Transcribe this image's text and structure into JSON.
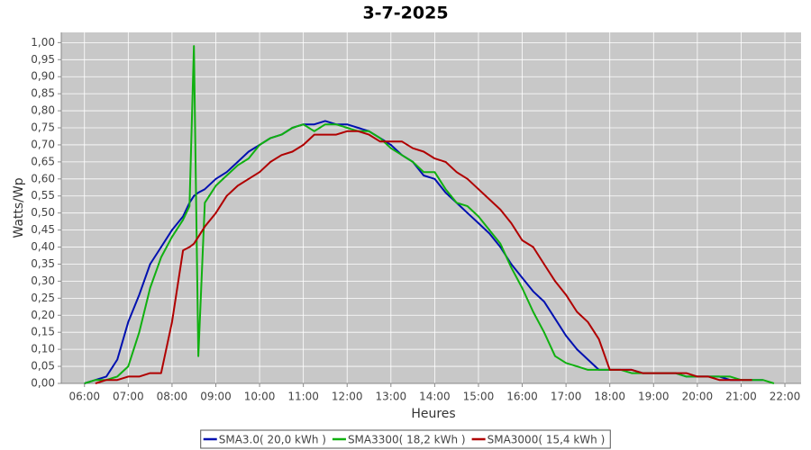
{
  "chart_data": {
    "type": "line",
    "title": "3-7-2025",
    "x_label": "Heures",
    "y_label": "Watts/Wp",
    "grid": true,
    "legend": "bottom",
    "x": [
      6,
      6.25,
      6.5,
      6.75,
      7,
      7.25,
      7.5,
      7.75,
      8,
      8.25,
      8.4,
      8.5,
      8.6,
      8.75,
      9,
      9.25,
      9.5,
      9.75,
      10,
      10.25,
      10.5,
      10.75,
      11,
      11.25,
      11.5,
      11.75,
      12,
      12.25,
      12.5,
      12.75,
      13,
      13.25,
      13.5,
      13.75,
      14,
      14.25,
      14.5,
      14.75,
      15,
      15.25,
      15.5,
      15.75,
      16,
      16.25,
      16.5,
      16.75,
      17,
      17.25,
      17.5,
      17.75,
      18,
      18.25,
      18.5,
      18.75,
      19,
      19.25,
      19.5,
      19.75,
      20,
      20.25,
      20.5,
      20.75,
      21,
      21.25,
      21.5,
      21.75
    ],
    "series": [
      {
        "name": "SMA3.0( 20,0 kWh )",
        "color": "#0010b0",
        "values": [
          0.0,
          0.01,
          0.02,
          0.07,
          0.18,
          0.26,
          0.35,
          0.4,
          0.45,
          0.49,
          0.53,
          0.55,
          0.56,
          0.57,
          0.6,
          0.62,
          0.65,
          0.68,
          0.7,
          0.72,
          0.73,
          0.75,
          0.76,
          0.76,
          0.77,
          0.76,
          0.76,
          0.75,
          0.74,
          0.72,
          0.7,
          0.67,
          0.65,
          0.61,
          0.6,
          0.56,
          0.53,
          0.5,
          0.47,
          0.44,
          0.4,
          0.35,
          0.31,
          0.27,
          0.24,
          0.19,
          0.14,
          0.1,
          0.07,
          0.04,
          0.04,
          0.04,
          0.04,
          0.03,
          0.03,
          0.03,
          0.03,
          0.02,
          0.02,
          0.02,
          0.02,
          0.01,
          0.01,
          0.01,
          0.01,
          null
        ]
      },
      {
        "name": "SMA3300( 18,2 kWh )",
        "color": "#10b010",
        "values": [
          0.0,
          0.01,
          0.01,
          0.02,
          0.05,
          0.15,
          0.28,
          0.37,
          0.43,
          0.48,
          0.52,
          0.99,
          0.08,
          0.53,
          0.58,
          0.61,
          0.64,
          0.66,
          0.7,
          0.72,
          0.73,
          0.75,
          0.76,
          0.74,
          0.76,
          0.76,
          0.75,
          0.74,
          0.74,
          0.72,
          0.69,
          0.67,
          0.65,
          0.62,
          0.62,
          0.57,
          0.53,
          0.52,
          0.49,
          0.45,
          0.41,
          0.34,
          0.28,
          0.21,
          0.15,
          0.08,
          0.06,
          0.05,
          0.04,
          0.04,
          0.04,
          0.04,
          0.03,
          0.03,
          0.03,
          0.03,
          0.03,
          0.02,
          0.02,
          0.02,
          0.02,
          0.02,
          0.01,
          0.01,
          0.01,
          0.0
        ]
      },
      {
        "name": "SMA3000( 15,4 kWh )",
        "color": "#b00000",
        "values": [
          null,
          0.0,
          0.01,
          0.01,
          0.02,
          0.02,
          0.03,
          0.03,
          0.18,
          0.39,
          0.4,
          0.41,
          0.43,
          0.46,
          0.5,
          0.55,
          0.58,
          0.6,
          0.62,
          0.65,
          0.67,
          0.68,
          0.7,
          0.73,
          0.73,
          0.73,
          0.74,
          0.74,
          0.73,
          0.71,
          0.71,
          0.71,
          0.69,
          0.68,
          0.66,
          0.65,
          0.62,
          0.6,
          0.57,
          0.54,
          0.51,
          0.47,
          0.42,
          0.4,
          0.35,
          0.3,
          0.26,
          0.21,
          0.18,
          0.13,
          0.04,
          0.04,
          0.04,
          0.03,
          0.03,
          0.03,
          0.03,
          0.03,
          0.02,
          0.02,
          0.01,
          0.01,
          0.01,
          0.01,
          null,
          null
        ]
      }
    ],
    "xlim": [
      5.47,
      22.37
    ],
    "xticks": [
      {
        "value": 6,
        "label": "06:00"
      },
      {
        "value": 7,
        "label": "07:00"
      },
      {
        "value": 8,
        "label": "08:00"
      },
      {
        "value": 9,
        "label": "09:00"
      },
      {
        "value": 10,
        "label": "10:00"
      },
      {
        "value": 11,
        "label": "11:00"
      },
      {
        "value": 12,
        "label": "12:00"
      },
      {
        "value": 13,
        "label": "13:00"
      },
      {
        "value": 14,
        "label": "14:00"
      },
      {
        "value": 15,
        "label": "15:00"
      },
      {
        "value": 16,
        "label": "16:00"
      },
      {
        "value": 17,
        "label": "17:00"
      },
      {
        "value": 18,
        "label": "18:00"
      },
      {
        "value": 19,
        "label": "19:00"
      },
      {
        "value": 20,
        "label": "20:00"
      },
      {
        "value": 21,
        "label": "21:00"
      },
      {
        "value": 22,
        "label": "22:00"
      }
    ],
    "ylim": [
      0,
      1.03
    ],
    "yticks": [
      {
        "value": 0,
        "label": "0,00"
      },
      {
        "value": 0.05,
        "label": "0,05"
      },
      {
        "value": 0.1,
        "label": "0,10"
      },
      {
        "value": 0.15,
        "label": "0,15"
      },
      {
        "value": 0.2,
        "label": "0,20"
      },
      {
        "value": 0.25,
        "label": "0,25"
      },
      {
        "value": 0.3,
        "label": "0,30"
      },
      {
        "value": 0.35,
        "label": "0,35"
      },
      {
        "value": 0.4,
        "label": "0,40"
      },
      {
        "value": 0.45,
        "label": "0,45"
      },
      {
        "value": 0.5,
        "label": "0,50"
      },
      {
        "value": 0.55,
        "label": "0,55"
      },
      {
        "value": 0.6,
        "label": "0,60"
      },
      {
        "value": 0.65,
        "label": "0,65"
      },
      {
        "value": 0.7,
        "label": "0,70"
      },
      {
        "value": 0.75,
        "label": "0,75"
      },
      {
        "value": 0.8,
        "label": "0,80"
      },
      {
        "value": 0.85,
        "label": "0,85"
      },
      {
        "value": 0.9,
        "label": "0,90"
      },
      {
        "value": 0.95,
        "label": "0,95"
      },
      {
        "value": 1,
        "label": "1,00"
      }
    ]
  }
}
